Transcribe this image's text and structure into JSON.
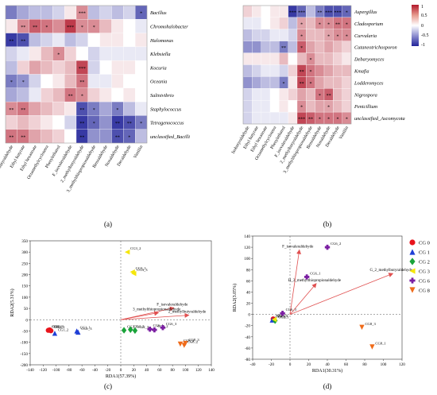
{
  "panel_labels": [
    "(a)",
    "(b)",
    "(c)",
    "(d)"
  ],
  "chart_data": [
    {
      "type": "heatmap",
      "panel": "(a)",
      "rows": [
        "Bacillus",
        "Chromohalobacter",
        "Halomonas",
        "Klebsiella",
        "Kocuria",
        "Oceania",
        "Salinivibrio",
        "Staphylococcus",
        "Tetragenococcus",
        "unclassified_Bacilli"
      ],
      "columns": [
        "Isobutyraldehyde",
        "Ethyl butyrate",
        "Ethyl hexanoate",
        "Octamethylcyclotetra",
        "Phenylethanol",
        "F_isovaleraldehyde",
        "2_methylbutyraldehyde",
        "3_methylthiopropionaldehyde",
        "Benzaldehyde",
        "Nonaldehyde",
        "Decaldehyde",
        "Vanillin"
      ],
      "values": [
        [
          -0.6,
          -0.4,
          -0.3,
          -0.3,
          -0.2,
          0.1,
          0.5,
          -0.3,
          -0.2,
          -0.3,
          -0.2,
          -0.7
        ],
        [
          0.1,
          0.5,
          0.7,
          0.6,
          0.5,
          0.85,
          0.5,
          0.5,
          0.3,
          0.1,
          0.0,
          -0.1
        ],
        [
          -0.9,
          -0.8,
          -0.3,
          -0.2,
          -0.1,
          -0.3,
          -0.2,
          0.0,
          0.1,
          0.1,
          0.0,
          0.1
        ],
        [
          -0.2,
          -0.1,
          0.1,
          0.3,
          0.5,
          0.2,
          0.0,
          -0.2,
          -0.1,
          -0.1,
          -0.1,
          -0.1
        ],
        [
          -0.3,
          0.2,
          0.4,
          0.3,
          0.2,
          0.3,
          0.8,
          -0.2,
          0.0,
          0.1,
          0.1,
          0.0
        ],
        [
          -0.6,
          -0.5,
          -0.2,
          0.0,
          0.1,
          0.3,
          0.6,
          -0.1,
          -0.1,
          0.1,
          0.0,
          0.0
        ],
        [
          -0.4,
          -0.3,
          -0.1,
          0.2,
          0.3,
          0.6,
          0.5,
          0.2,
          0.1,
          0.0,
          0.1,
          0.0
        ],
        [
          0.5,
          0.6,
          0.4,
          0.3,
          0.2,
          0.1,
          -0.8,
          -0.6,
          -0.4,
          -0.6,
          -0.3,
          -0.1
        ],
        [
          0.2,
          0.3,
          0.2,
          0.1,
          0.0,
          -0.2,
          -0.9,
          -0.7,
          -0.5,
          -0.9,
          -0.8,
          -0.6
        ],
        [
          0.6,
          0.6,
          0.4,
          0.3,
          0.2,
          0.0,
          -0.9,
          -0.5,
          -0.5,
          -0.8,
          -0.7,
          -0.3
        ]
      ],
      "stars": [
        [
          0,
          0,
          0,
          0,
          0,
          0,
          3,
          0,
          0,
          0,
          0,
          1
        ],
        [
          0,
          2,
          2,
          1,
          0,
          3,
          1,
          1,
          0,
          0,
          0,
          0
        ],
        [
          2,
          2,
          0,
          0,
          0,
          0,
          0,
          0,
          0,
          0,
          0,
          0
        ],
        [
          0,
          0,
          0,
          0,
          1,
          0,
          0,
          0,
          0,
          0,
          0,
          0
        ],
        [
          0,
          0,
          0,
          0,
          0,
          0,
          3,
          0,
          0,
          0,
          0,
          0
        ],
        [
          1,
          1,
          0,
          0,
          0,
          0,
          2,
          0,
          0,
          0,
          0,
          0
        ],
        [
          0,
          0,
          0,
          0,
          0,
          2,
          1,
          0,
          0,
          0,
          0,
          0
        ],
        [
          2,
          2,
          0,
          0,
          0,
          0,
          2,
          1,
          0,
          1,
          0,
          0
        ],
        [
          0,
          0,
          0,
          0,
          0,
          0,
          2,
          1,
          0,
          2,
          2,
          1
        ],
        [
          2,
          2,
          0,
          0,
          0,
          0,
          2,
          0,
          0,
          2,
          1,
          0
        ]
      ]
    },
    {
      "type": "heatmap",
      "panel": "(b)",
      "rows": [
        "Aspergillus",
        "Cladosporium",
        "Curvularia",
        "Cutaneotrichosporon",
        "Debaryomyces",
        "Kmafia",
        "Lodderomyces",
        "Nigrospora",
        "Penicillium",
        "unclassified_Ascomycota"
      ],
      "columns": [
        "Isobutyraldehyde",
        "Ethyl butyrate",
        "Ethyl hexanoate",
        "Octamethylcyclotetra",
        "Phenylethanol",
        "F_isovaleraldehyde",
        "2_methylbutyraldehyde",
        "3_methylthiopropionaldehyde",
        "Benzaldehyde",
        "Nonaldehyde",
        "Decaldehyde",
        "Vanillin"
      ],
      "values": [
        [
          0.2,
          0.1,
          0.0,
          0.1,
          0.1,
          -0.9,
          -0.7,
          -0.3,
          -0.6,
          -0.8,
          -0.8,
          -0.7
        ],
        [
          -0.1,
          -0.1,
          0.0,
          0.1,
          0.2,
          -0.3,
          0.4,
          0.3,
          0.5,
          0.5,
          0.6,
          0.6
        ],
        [
          -0.3,
          -0.2,
          -0.2,
          -0.1,
          -0.1,
          -0.2,
          0.5,
          0.3,
          0.3,
          0.4,
          0.5,
          0.5
        ],
        [
          -0.5,
          -0.5,
          -0.3,
          -0.3,
          -0.6,
          -0.3,
          0.7,
          0.4,
          0.3,
          0.4,
          0.3,
          0.2
        ],
        [
          0.1,
          0.1,
          0.1,
          0.1,
          0.3,
          0.0,
          0.3,
          0.5,
          0.3,
          0.3,
          0.2,
          0.1
        ],
        [
          -0.3,
          -0.2,
          -0.1,
          -0.1,
          -0.2,
          0.2,
          0.8,
          0.6,
          0.5,
          0.4,
          0.3,
          0.3
        ],
        [
          -0.5,
          -0.4,
          -0.3,
          -0.3,
          -0.6,
          0.1,
          0.8,
          0.6,
          0.4,
          0.3,
          0.3,
          0.2
        ],
        [
          -0.2,
          -0.1,
          -0.1,
          0.0,
          0.1,
          0.2,
          0.4,
          0.3,
          0.6,
          0.7,
          0.3,
          0.2
        ],
        [
          -0.2,
          -0.1,
          -0.1,
          0.0,
          0.1,
          0.0,
          0.5,
          0.3,
          0.4,
          0.4,
          0.3,
          0.2
        ],
        [
          -0.2,
          -0.1,
          -0.1,
          -0.1,
          -0.1,
          0.1,
          0.8,
          0.7,
          0.6,
          0.6,
          0.6,
          0.5
        ]
      ],
      "stars": [
        [
          0,
          0,
          0,
          0,
          0,
          3,
          3,
          0,
          2,
          3,
          3,
          1
        ],
        [
          0,
          0,
          0,
          0,
          0,
          0,
          1,
          0,
          1,
          1,
          2,
          1
        ],
        [
          0,
          0,
          0,
          0,
          0,
          0,
          1,
          0,
          0,
          1,
          1,
          1
        ],
        [
          0,
          0,
          0,
          0,
          2,
          0,
          1,
          0,
          0,
          0,
          0,
          0
        ],
        [
          0,
          0,
          0,
          0,
          0,
          0,
          0,
          1,
          0,
          0,
          0,
          0
        ],
        [
          0,
          0,
          0,
          0,
          0,
          0,
          2,
          1,
          0,
          0,
          0,
          0
        ],
        [
          0,
          0,
          0,
          0,
          1,
          0,
          2,
          1,
          0,
          0,
          0,
          0
        ],
        [
          0,
          0,
          0,
          0,
          0,
          0,
          0,
          0,
          1,
          2,
          0,
          0
        ],
        [
          0,
          0,
          0,
          0,
          0,
          0,
          1,
          0,
          0,
          1,
          0,
          0
        ],
        [
          0,
          0,
          0,
          0,
          0,
          0,
          3,
          2,
          1,
          1,
          1,
          1
        ]
      ]
    },
    {
      "type": "scatter",
      "panel": "(c)",
      "xlabel": "RDA1(57.39%)",
      "ylabel": "RDA2(5.31%)",
      "xlim": [
        -140,
        140
      ],
      "ylim": [
        -200,
        350
      ],
      "xticks": [
        -140,
        -120,
        -100,
        -80,
        -60,
        -40,
        -20,
        0,
        20,
        40,
        60,
        80,
        100,
        120,
        140
      ],
      "yticks": [
        -200,
        -150,
        -100,
        -50,
        0,
        50,
        100,
        150,
        200,
        250,
        300,
        350
      ],
      "points": [
        {
          "group": "CG 0",
          "x": -112,
          "y": -47,
          "label": "CG0_1"
        },
        {
          "group": "CG 0",
          "x": -110,
          "y": -45,
          "label": "CG0_2"
        },
        {
          "group": "CG 0",
          "x": -108,
          "y": -49,
          "label": "CG0_3"
        },
        {
          "group": "CG 1",
          "x": -102,
          "y": -60,
          "label": "CG1_2"
        },
        {
          "group": "CG 1",
          "x": -68,
          "y": -50,
          "label": "CG1_1"
        },
        {
          "group": "CG 1",
          "x": -66,
          "y": -55,
          "label": "CG1_3"
        },
        {
          "group": "CG 2",
          "x": 5,
          "y": -47,
          "label": "CG2_1"
        },
        {
          "group": "CG 2",
          "x": 15,
          "y": -44,
          "label": "CG2_2"
        },
        {
          "group": "CG 2",
          "x": 22,
          "y": -48,
          "label": "CG2_3"
        },
        {
          "group": "CG 3",
          "x": 10,
          "y": 300,
          "label": "CG3_2"
        },
        {
          "group": "CG 3",
          "x": 18,
          "y": 212,
          "label": "CG3_1"
        },
        {
          "group": "CG 3",
          "x": 20,
          "y": 205,
          "label": "CG3_3"
        },
        {
          "group": "CG 6",
          "x": 45,
          "y": -42,
          "label": "CG6_1"
        },
        {
          "group": "CG 6",
          "x": 52,
          "y": -45,
          "label": "CG6_2"
        },
        {
          "group": "CG 6",
          "x": 65,
          "y": -35,
          "label": "CG6_3"
        },
        {
          "group": "CG 8",
          "x": 92,
          "y": -108,
          "label": "CG8_1"
        },
        {
          "group": "CG 8",
          "x": 98,
          "y": -114,
          "label": "CG8_2"
        },
        {
          "group": "CG 8",
          "x": 100,
          "y": -105,
          "label": "CG8_3"
        }
      ],
      "vectors": [
        {
          "name": "F_isovaleraldehyde",
          "x": 82,
          "y": 52
        },
        {
          "name": "3_methylthiopropionaldehyde",
          "x": 58,
          "y": 31
        },
        {
          "name": "2_methylbutyraldehyde",
          "x": 105,
          "y": 20
        }
      ]
    },
    {
      "type": "scatter",
      "panel": "(d)",
      "xlabel": "RDA1(30.31%)",
      "ylabel": "RDA2(3.05%)",
      "xlim": [
        -40,
        120
      ],
      "ylim": [
        -80,
        140
      ],
      "xticks": [
        -40,
        -20,
        0,
        20,
        40,
        60,
        80,
        100,
        120
      ],
      "yticks": [
        -80,
        -60,
        -40,
        -20,
        0,
        20,
        40,
        60,
        80,
        100,
        120,
        140
      ],
      "points": [
        {
          "group": "CG 0",
          "x": -18,
          "y": -8,
          "label": "CG0_1"
        },
        {
          "group": "CG 1",
          "x": -19,
          "y": -10,
          "label": "CG1_1"
        },
        {
          "group": "CG 2",
          "x": -16,
          "y": -11,
          "label": "CG2_1"
        },
        {
          "group": "CG 3",
          "x": -17,
          "y": -9,
          "label": "CG3_1"
        },
        {
          "group": "CG 6",
          "x": 40,
          "y": 120,
          "label": "CG6_2"
        },
        {
          "group": "CG 6",
          "x": 18,
          "y": 67,
          "label": "CG6_1"
        },
        {
          "group": "CG 6",
          "x": -8,
          "y": 2,
          "label": "CG6_3"
        },
        {
          "group": "CG 8",
          "x": 77,
          "y": -23,
          "label": "CG8_3"
        },
        {
          "group": "CG 8",
          "x": 88,
          "y": -58,
          "label": "CG8_1"
        }
      ],
      "vectors": [
        {
          "name": "F_isovaleraldehyde",
          "x": 10,
          "y": 115
        },
        {
          "name": "G_2_methylbutyraldehyde",
          "x": 110,
          "y": 73
        },
        {
          "name": "H_3_methylthiopropionaldehyde",
          "x": 28,
          "y": 55
        }
      ]
    }
  ],
  "legend": [
    {
      "label": "CG 0",
      "color": "#e8141c",
      "shape": "circle"
    },
    {
      "label": "CG 1",
      "color": "#1f3fd6",
      "shape": "triangle-up"
    },
    {
      "label": "CG 2",
      "color": "#1aa33a",
      "shape": "diamond"
    },
    {
      "label": "CG 3",
      "color": "#f5e60a",
      "shape": "triangle-left"
    },
    {
      "label": "CG 6",
      "color": "#7b1fa2",
      "shape": "plus"
    },
    {
      "label": "CG 8",
      "color": "#ef6b1a",
      "shape": "triangle-down"
    }
  ],
  "colorbar": {
    "ticks": [
      "1",
      "0.5",
      "0",
      "-0.5",
      "-1"
    ],
    "high": "#b2182b",
    "mid": "#ffffff",
    "low": "#22249a"
  }
}
